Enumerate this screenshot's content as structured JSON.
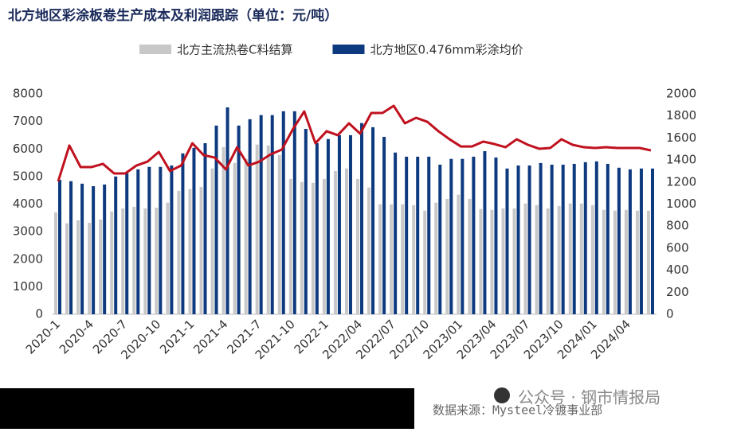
{
  "chart_data": {
    "type": "bar",
    "title": "北方地区彩涂板卷生产成本及利润跟踪（单位：元/吨）",
    "source": "数据来源：Mysteel冷镀事业部",
    "watermark": "公众号 · 钢市情报局",
    "categories": [
      "2020-1",
      null,
      null,
      "2020-4",
      null,
      null,
      "2020-7",
      null,
      null,
      "2020-10",
      null,
      null,
      "2021-1",
      null,
      null,
      "2021-4",
      null,
      null,
      "2021-7",
      null,
      null,
      "2021-10",
      null,
      null,
      "2022-1",
      null,
      null,
      "2022/04",
      null,
      null,
      "2022/07",
      null,
      null,
      "2022/10",
      null,
      null,
      "2023/01",
      null,
      null,
      "2023/04",
      null,
      null,
      "2023/07",
      null,
      null,
      "2023/10",
      null,
      null,
      "2024/01",
      null,
      null,
      "2024/04",
      null,
      null
    ],
    "series": [
      {
        "name": "北方主流热卷C料结算",
        "color": "#c8c8c8",
        "values": [
          3700,
          3300,
          3410,
          3320,
          3440,
          3730,
          3840,
          3900,
          3840,
          3870,
          4050,
          4480,
          4540,
          4620,
          5290,
          6070,
          5490,
          5640,
          6160,
          6130,
          5780,
          4910,
          4800,
          4770,
          4910,
          5200,
          5290,
          4910,
          4600,
          3990,
          3990,
          3990,
          3960,
          3760,
          4050,
          4190,
          4340,
          4190,
          3820,
          3790,
          3840,
          3840,
          4020,
          3960,
          3840,
          3930,
          4020,
          4020,
          3960,
          3790,
          3760,
          3790,
          3760,
          3760
        ]
      },
      {
        "name": "北方地区0.476mm彩涂均价",
        "color": "#0d3a7e",
        "values": [
          4880,
          4830,
          4740,
          4650,
          4710,
          5000,
          5120,
          5260,
          5350,
          5350,
          5400,
          5840,
          6040,
          6210,
          6850,
          7510,
          6850,
          7080,
          7230,
          7230,
          7370,
          7370,
          6730,
          6210,
          6360,
          6500,
          6500,
          6940,
          6790,
          6440,
          5870,
          5720,
          5720,
          5720,
          5430,
          5640,
          5640,
          5720,
          5920,
          5690,
          5290,
          5400,
          5400,
          5490,
          5430,
          5430,
          5460,
          5520,
          5550,
          5460,
          5320,
          5260,
          5290,
          5290
        ]
      },
      {
        "type": "line",
        "axis": "y2",
        "color": "#c0111f",
        "values": [
          1206,
          1531,
          1336,
          1336,
          1365,
          1278,
          1278,
          1350,
          1386,
          1473,
          1300,
          1350,
          1552,
          1444,
          1422,
          1314,
          1516,
          1350,
          1386,
          1451,
          1495,
          1682,
          1841,
          1552,
          1661,
          1625,
          1733,
          1639,
          1827,
          1827,
          1892,
          1733,
          1783,
          1747,
          1661,
          1588,
          1523,
          1523,
          1567,
          1545,
          1516,
          1588,
          1538,
          1502,
          1509,
          1588,
          1538,
          1516,
          1509,
          1516,
          1509,
          1509,
          1509,
          1487
        ]
      }
    ],
    "ylim": [
      0,
      8000
    ],
    "yticks": [
      0,
      1000,
      2000,
      3000,
      4000,
      5000,
      6000,
      7000,
      8000
    ],
    "y2lim": [
      0,
      2000
    ],
    "y2ticks": [
      0,
      200,
      400,
      600,
      800,
      1000,
      1200,
      1400,
      1600,
      1800,
      2000
    ]
  }
}
